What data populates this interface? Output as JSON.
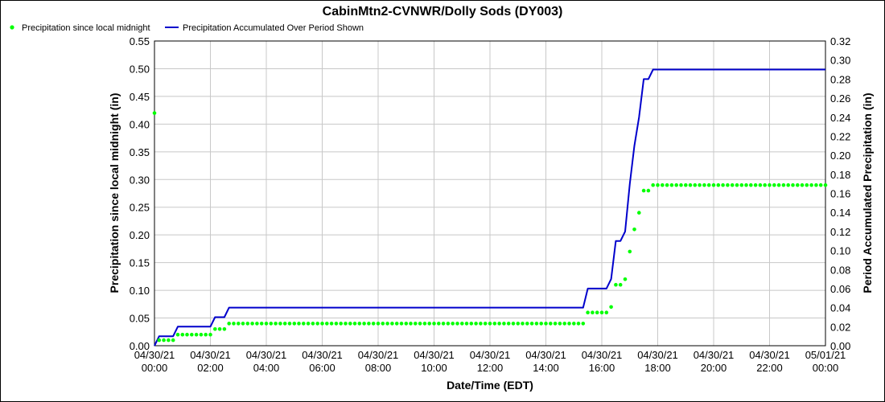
{
  "chart_data": {
    "type": "line",
    "title": "CabinMtn2-CVNWR/Dolly Sods (DY003)",
    "xlabel": "Date/Time (EDT)",
    "ylabel": "Precipitation since local midnight (in)",
    "y2label": "Period Accumulated Precipitation (in)",
    "x_ticks": [
      {
        "date": "04/30/21",
        "time": "00:00"
      },
      {
        "date": "04/30/21",
        "time": "02:00"
      },
      {
        "date": "04/30/21",
        "time": "04:00"
      },
      {
        "date": "04/30/21",
        "time": "06:00"
      },
      {
        "date": "04/30/21",
        "time": "08:00"
      },
      {
        "date": "04/30/21",
        "time": "10:00"
      },
      {
        "date": "04/30/21",
        "time": "12:00"
      },
      {
        "date": "04/30/21",
        "time": "14:00"
      },
      {
        "date": "04/30/21",
        "time": "16:00"
      },
      {
        "date": "04/30/21",
        "time": "18:00"
      },
      {
        "date": "04/30/21",
        "time": "20:00"
      },
      {
        "date": "04/30/21",
        "time": "22:00"
      },
      {
        "date": "05/01/21",
        "time": "00:00"
      }
    ],
    "xlim": [
      "04/30/21 00:00",
      "05/01/21 00:00"
    ],
    "ylim": [
      0,
      0.55
    ],
    "y_ticks": [
      "0.00",
      "0.05",
      "0.10",
      "0.15",
      "0.20",
      "0.25",
      "0.30",
      "0.35",
      "0.40",
      "0.45",
      "0.50",
      "0.55"
    ],
    "y2lim": [
      0,
      0.32
    ],
    "y2_ticks": [
      "0.00",
      "0.02",
      "0.04",
      "0.06",
      "0.08",
      "0.10",
      "0.12",
      "0.14",
      "0.16",
      "0.18",
      "0.20",
      "0.22",
      "0.24",
      "0.26",
      "0.28",
      "0.30",
      "0.32"
    ],
    "grid": true,
    "legend_position": "top-left",
    "colors": {
      "points": "#00ff00",
      "line": "#0000cc"
    },
    "series": [
      {
        "name": "Precipitation since local midnight",
        "type": "scatter",
        "axis": "left",
        "points": [
          {
            "x": "04/30/21 00:00",
            "y": 0.42
          },
          {
            "x": "04/30/21 00:10",
            "y": 0.01
          },
          {
            "x": "04/30/21 00:20",
            "y": 0.01
          },
          {
            "x": "04/30/21 00:30",
            "y": 0.01
          },
          {
            "x": "04/30/21 00:40",
            "y": 0.01
          },
          {
            "x": "04/30/21 00:50",
            "y": 0.02
          },
          {
            "x": "04/30/21 01:00",
            "y": 0.02
          },
          {
            "x": "04/30/21 01:10",
            "y": 0.02
          },
          {
            "x": "04/30/21 01:20",
            "y": 0.02
          },
          {
            "x": "04/30/21 01:30",
            "y": 0.02
          },
          {
            "x": "04/30/21 01:40",
            "y": 0.02
          },
          {
            "x": "04/30/21 01:50",
            "y": 0.02
          },
          {
            "x": "04/30/21 02:00",
            "y": 0.02
          },
          {
            "x": "04/30/21 02:10",
            "y": 0.03
          },
          {
            "x": "04/30/21 02:20",
            "y": 0.03
          },
          {
            "x": "04/30/21 02:30",
            "y": 0.03
          },
          {
            "x": "04/30/21 02:40",
            "y": 0.04
          },
          {
            "x": "04/30/21 15:20",
            "y": 0.04
          },
          {
            "x": "04/30/21 15:30",
            "y": 0.06
          },
          {
            "x": "04/30/21 15:40",
            "y": 0.06
          },
          {
            "x": "04/30/21 15:50",
            "y": 0.06
          },
          {
            "x": "04/30/21 16:00",
            "y": 0.06
          },
          {
            "x": "04/30/21 16:10",
            "y": 0.06
          },
          {
            "x": "04/30/21 16:20",
            "y": 0.07
          },
          {
            "x": "04/30/21 16:30",
            "y": 0.11
          },
          {
            "x": "04/30/21 16:40",
            "y": 0.11
          },
          {
            "x": "04/30/21 16:50",
            "y": 0.12
          },
          {
            "x": "04/30/21 17:00",
            "y": 0.17
          },
          {
            "x": "04/30/21 17:10",
            "y": 0.21
          },
          {
            "x": "04/30/21 17:20",
            "y": 0.24
          },
          {
            "x": "04/30/21 17:30",
            "y": 0.28
          },
          {
            "x": "04/30/21 17:40",
            "y": 0.28
          },
          {
            "x": "04/30/21 17:50",
            "y": 0.29
          },
          {
            "x": "05/01/21 00:00",
            "y": 0.29
          }
        ]
      },
      {
        "name": "Precipitation Accumulated Over Period Shown",
        "type": "line",
        "axis": "right",
        "points": [
          {
            "x": "04/30/21 00:00",
            "y": 0.0
          },
          {
            "x": "04/30/21 00:10",
            "y": 0.01
          },
          {
            "x": "04/30/21 00:40",
            "y": 0.01
          },
          {
            "x": "04/30/21 00:50",
            "y": 0.02
          },
          {
            "x": "04/30/21 02:00",
            "y": 0.02
          },
          {
            "x": "04/30/21 02:10",
            "y": 0.03
          },
          {
            "x": "04/30/21 02:30",
            "y": 0.03
          },
          {
            "x": "04/30/21 02:40",
            "y": 0.04
          },
          {
            "x": "04/30/21 15:20",
            "y": 0.04
          },
          {
            "x": "04/30/21 15:30",
            "y": 0.06
          },
          {
            "x": "04/30/21 16:10",
            "y": 0.06
          },
          {
            "x": "04/30/21 16:20",
            "y": 0.07
          },
          {
            "x": "04/30/21 16:30",
            "y": 0.11
          },
          {
            "x": "04/30/21 16:40",
            "y": 0.11
          },
          {
            "x": "04/30/21 16:50",
            "y": 0.12
          },
          {
            "x": "04/30/21 17:00",
            "y": 0.17
          },
          {
            "x": "04/30/21 17:10",
            "y": 0.21
          },
          {
            "x": "04/30/21 17:20",
            "y": 0.24
          },
          {
            "x": "04/30/21 17:30",
            "y": 0.28
          },
          {
            "x": "04/30/21 17:40",
            "y": 0.28
          },
          {
            "x": "04/30/21 17:50",
            "y": 0.29
          },
          {
            "x": "05/01/21 00:00",
            "y": 0.29
          }
        ]
      }
    ]
  }
}
